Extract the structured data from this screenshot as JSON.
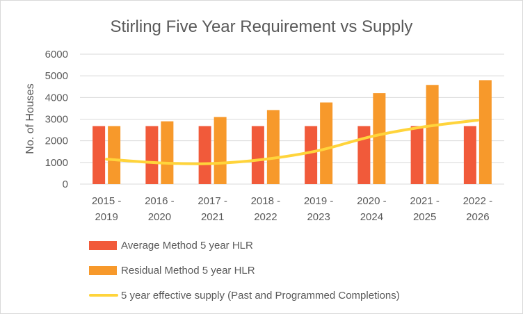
{
  "chart_data": {
    "type": "bar",
    "title": "Stirling Five Year Requirement vs Supply",
    "ylabel": "No. of Houses",
    "xlabel": "",
    "ylim": [
      0,
      6000
    ],
    "yticks": [
      "0",
      "1000",
      "2000",
      "3000",
      "4000",
      "5000",
      "6000"
    ],
    "categories": [
      [
        "2015 -",
        "2019"
      ],
      [
        "2016 -",
        "2020"
      ],
      [
        "2017 -",
        "2021"
      ],
      [
        "2018 -",
        "2022"
      ],
      [
        "2019 -",
        "2023"
      ],
      [
        "2020 -",
        "2024"
      ],
      [
        "2021 -",
        "2025"
      ],
      [
        "2022 -",
        "2026"
      ]
    ],
    "series": [
      {
        "name": "Average Method 5 year HLR",
        "type": "bar",
        "color": "#F15A3A",
        "values": [
          2680,
          2680,
          2680,
          2680,
          2680,
          2680,
          2680,
          2680
        ]
      },
      {
        "name": "Residual Method 5 year HLR",
        "type": "bar",
        "color": "#F7992B",
        "values": [
          2680,
          2900,
          3100,
          3420,
          3770,
          4200,
          4580,
          4800
        ]
      },
      {
        "name": "5 year effective supply (Past and Programmed Completions)",
        "type": "line",
        "smooth": true,
        "color": "#FFD43B",
        "values": [
          1150,
          980,
          950,
          1150,
          1550,
          2200,
          2650,
          2950
        ]
      }
    ],
    "grid": true,
    "legend_position": "bottom-left"
  }
}
